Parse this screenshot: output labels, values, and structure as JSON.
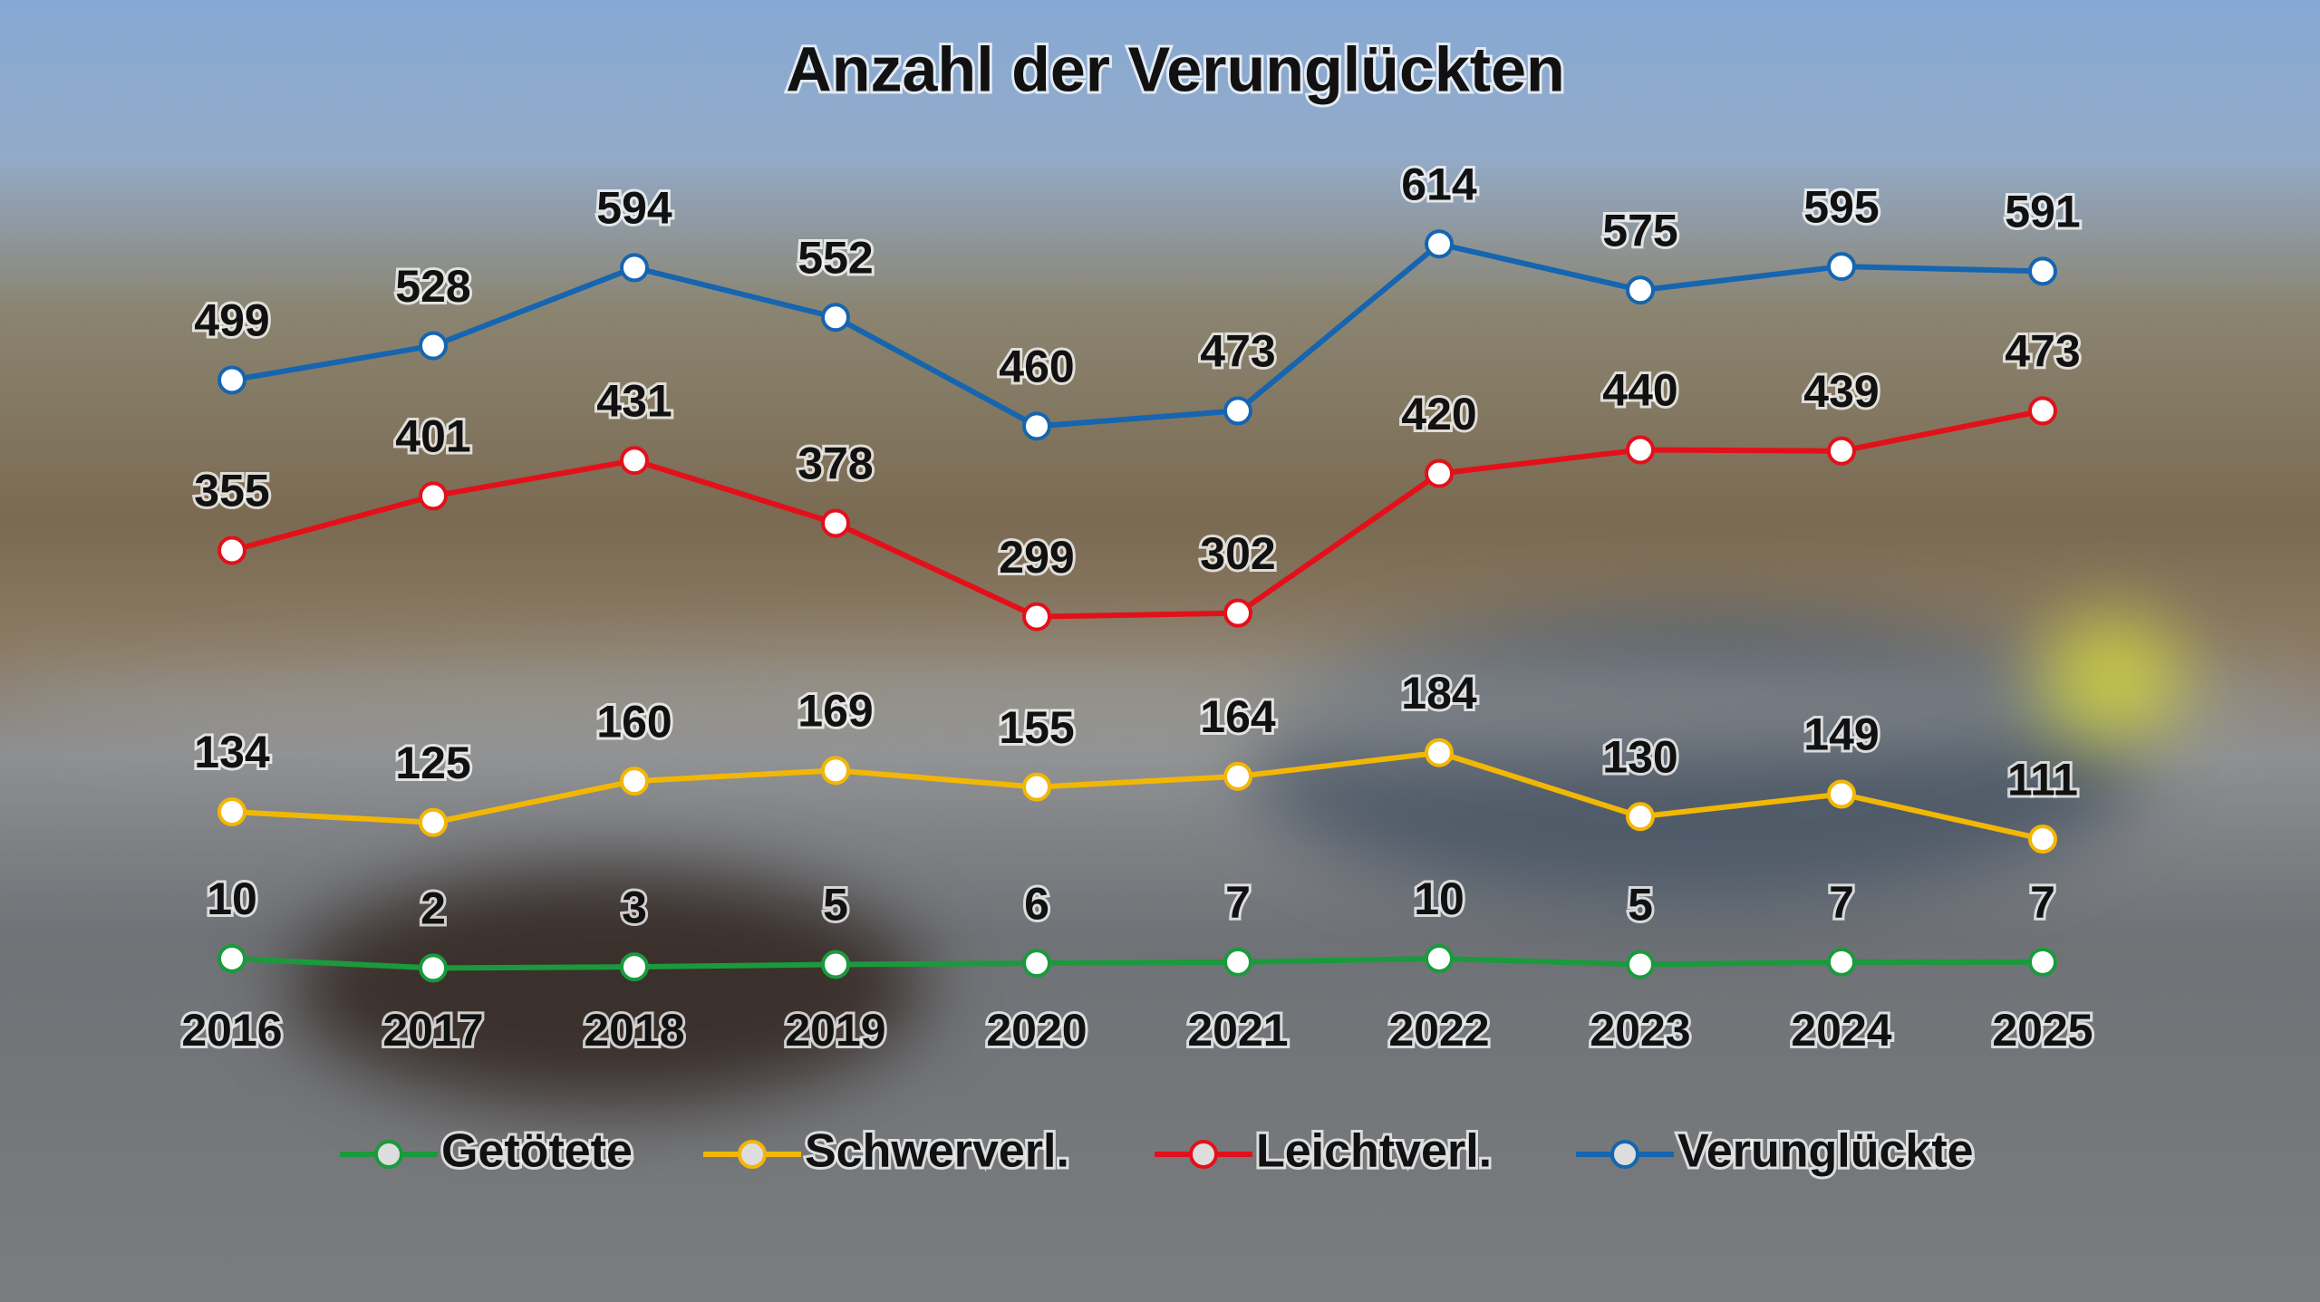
{
  "chart_data": {
    "type": "line",
    "title": "Anzahl der Verunglückten",
    "categories": [
      "2016",
      "2017",
      "2018",
      "2019",
      "2020",
      "2021",
      "2022",
      "2023",
      "2024",
      "2025"
    ],
    "series": [
      {
        "name": "Getötete",
        "color": "#1a9a3c",
        "values": [
          10,
          2,
          3,
          5,
          6,
          7,
          10,
          5,
          7,
          7
        ]
      },
      {
        "name": "Schwerverl.",
        "color": "#f2b705",
        "values": [
          134,
          125,
          160,
          169,
          155,
          164,
          184,
          130,
          149,
          111
        ]
      },
      {
        "name": "Leichtverl.",
        "color": "#e3101a",
        "values": [
          355,
          401,
          431,
          378,
          299,
          302,
          420,
          440,
          439,
          473
        ]
      },
      {
        "name": "Verunglückte",
        "color": "#1565b0",
        "values": [
          499,
          528,
          594,
          552,
          460,
          473,
          614,
          575,
          595,
          591
        ]
      }
    ],
    "ylim": [
      0,
      700
    ],
    "grid": false,
    "legend": "bottom"
  }
}
